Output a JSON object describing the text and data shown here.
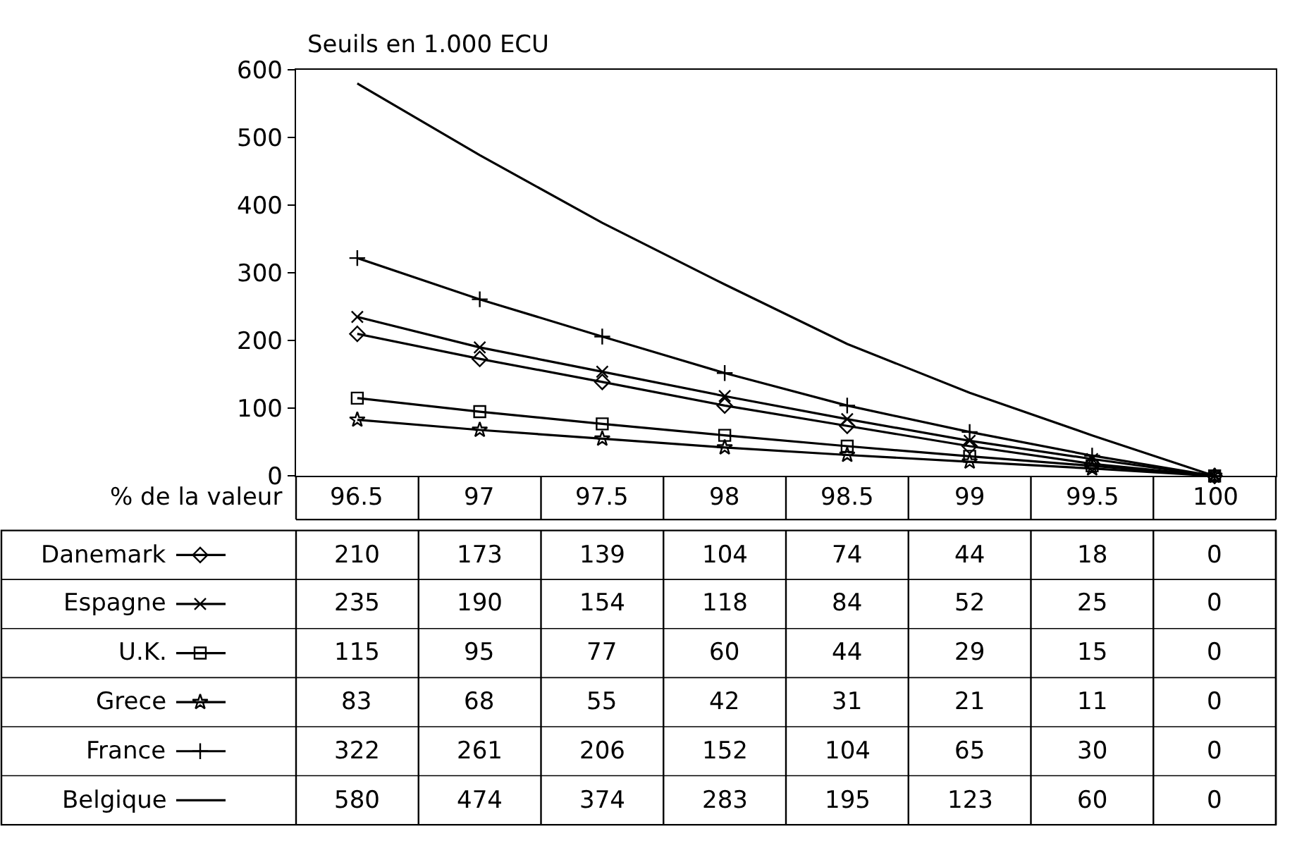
{
  "chart_data": {
    "type": "line",
    "ylabel": "Seuils en 1.000 ECU",
    "xlabel": "% de la valeur",
    "categories": [
      "96.5",
      "97",
      "97.5",
      "98",
      "98.5",
      "99",
      "99.5",
      "100"
    ],
    "ylim": [
      0,
      600
    ],
    "yticks": [
      0,
      100,
      200,
      300,
      400,
      500,
      600
    ],
    "legend": "bottom left",
    "data_labels": true,
    "series": [
      {
        "name": "Danemark",
        "color": "#000000",
        "marker": "diamond",
        "values": [
          210,
          173,
          139,
          104,
          74,
          44,
          18,
          0
        ]
      },
      {
        "name": "Espagne",
        "color": "#000000",
        "marker": "cross",
        "values": [
          235,
          190,
          154,
          118,
          84,
          52,
          25,
          0
        ]
      },
      {
        "name": "U.K.",
        "color": "#000000",
        "marker": "square",
        "values": [
          115,
          95,
          77,
          60,
          44,
          29,
          15,
          0
        ]
      },
      {
        "name": "Grece",
        "color": "#000000",
        "marker": "star",
        "values": [
          83,
          68,
          55,
          42,
          31,
          21,
          11,
          0
        ]
      },
      {
        "name": "France",
        "color": "#000000",
        "marker": "plus",
        "values": [
          322,
          261,
          206,
          152,
          104,
          65,
          30,
          0
        ]
      },
      {
        "name": "Belgique",
        "color": "#000000",
        "marker": "none",
        "values": [
          580,
          474,
          374,
          283,
          195,
          123,
          60,
          0
        ]
      }
    ]
  }
}
